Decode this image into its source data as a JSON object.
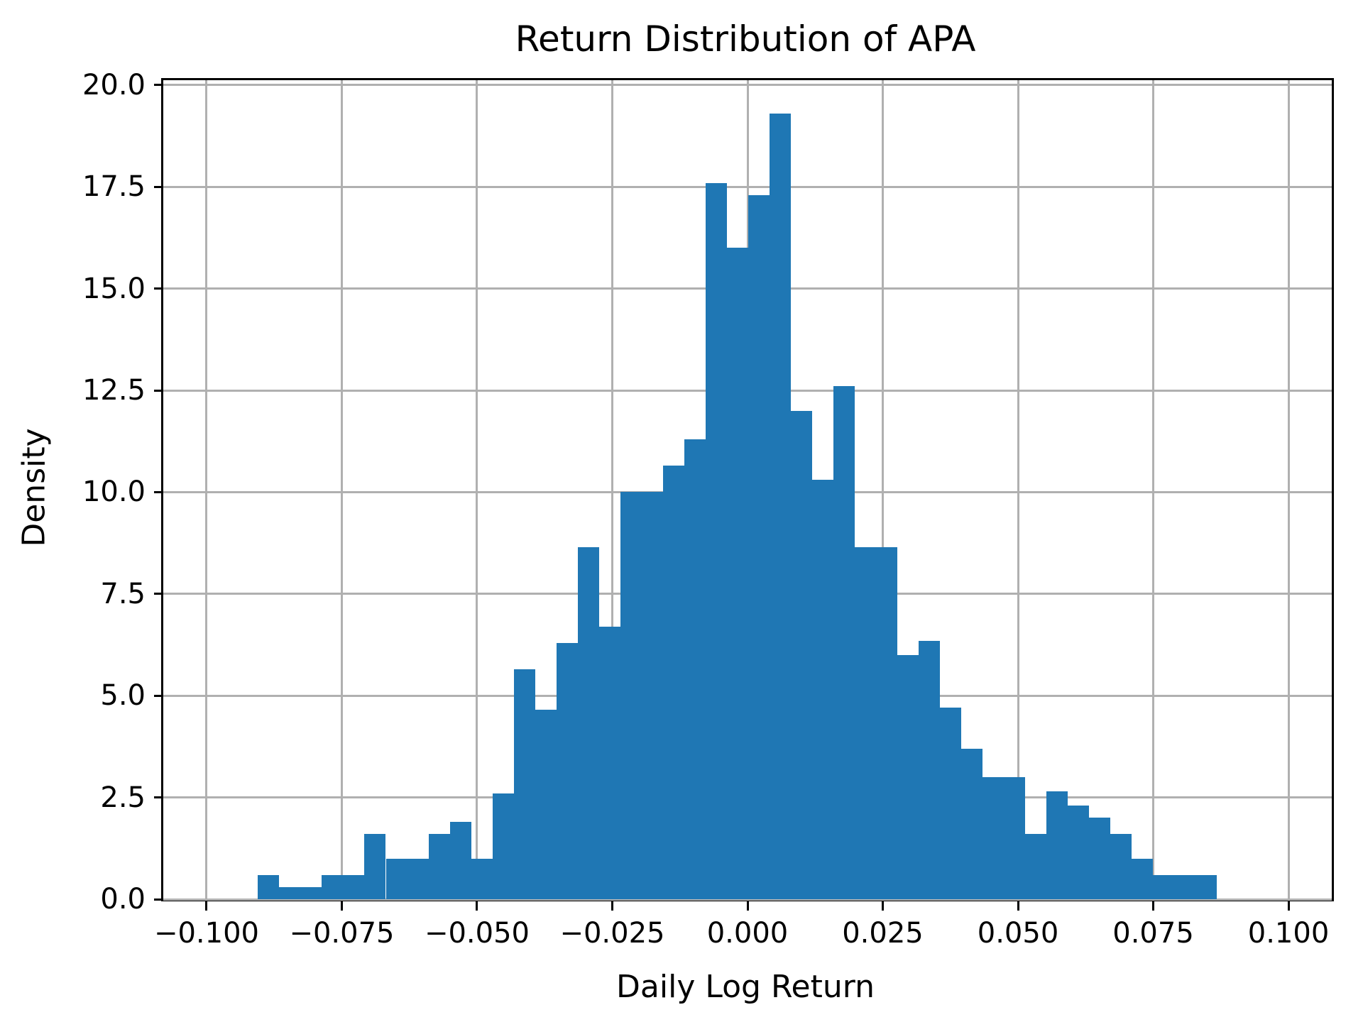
{
  "figure": {
    "title": "Return Distribution of APA",
    "xlabel": "Daily Log Return",
    "ylabel": "Density"
  },
  "chart_data": {
    "type": "bar",
    "subtype": "histogram",
    "title": "Return Distribution of APA",
    "xlabel": "Daily Log Return",
    "ylabel": "Density",
    "legend": "none",
    "grid": "on",
    "background_color": "#ffffff",
    "bar_color": "#1f77b4",
    "grid_color": "#b0b0b0",
    "spine_color": "#000000",
    "xlim": [
      -0.108,
      0.108
    ],
    "ylim": [
      0,
      20.12
    ],
    "x_ticks": [
      {
        "value": -0.1,
        "label": "−0.100"
      },
      {
        "value": -0.075,
        "label": "−0.075"
      },
      {
        "value": -0.05,
        "label": "−0.050"
      },
      {
        "value": -0.025,
        "label": "−0.025"
      },
      {
        "value": 0.0,
        "label": "0.000"
      },
      {
        "value": 0.025,
        "label": "0.025"
      },
      {
        "value": 0.05,
        "label": "0.050"
      },
      {
        "value": 0.075,
        "label": "0.075"
      },
      {
        "value": 0.1,
        "label": "0.100"
      }
    ],
    "y_ticks": [
      {
        "value": 0.0,
        "label": "0.0"
      },
      {
        "value": 2.5,
        "label": "2.5"
      },
      {
        "value": 5.0,
        "label": "5.0"
      },
      {
        "value": 7.5,
        "label": "7.5"
      },
      {
        "value": 10.0,
        "label": "10.0"
      },
      {
        "value": 12.5,
        "label": "12.5"
      },
      {
        "value": 15.0,
        "label": "15.0"
      },
      {
        "value": 17.5,
        "label": "17.5"
      },
      {
        "value": 20.0,
        "label": "20.0"
      }
    ],
    "bins": {
      "start": -0.0905,
      "width": 0.00394,
      "count": 45
    },
    "values": [
      0.6,
      0.3,
      0.3,
      0.6,
      0.6,
      1.6,
      1.0,
      1.0,
      1.6,
      1.9,
      1.0,
      2.6,
      5.65,
      4.65,
      6.3,
      8.65,
      6.7,
      10.0,
      10.0,
      10.65,
      11.3,
      17.6,
      16.0,
      17.3,
      19.3,
      12.0,
      10.3,
      12.6,
      8.65,
      8.65,
      6.0,
      6.35,
      4.7,
      3.7,
      3.0,
      3.0,
      1.6,
      2.65,
      2.3,
      2.0,
      1.6,
      1.0,
      0.6,
      0.6,
      0.6
    ]
  }
}
